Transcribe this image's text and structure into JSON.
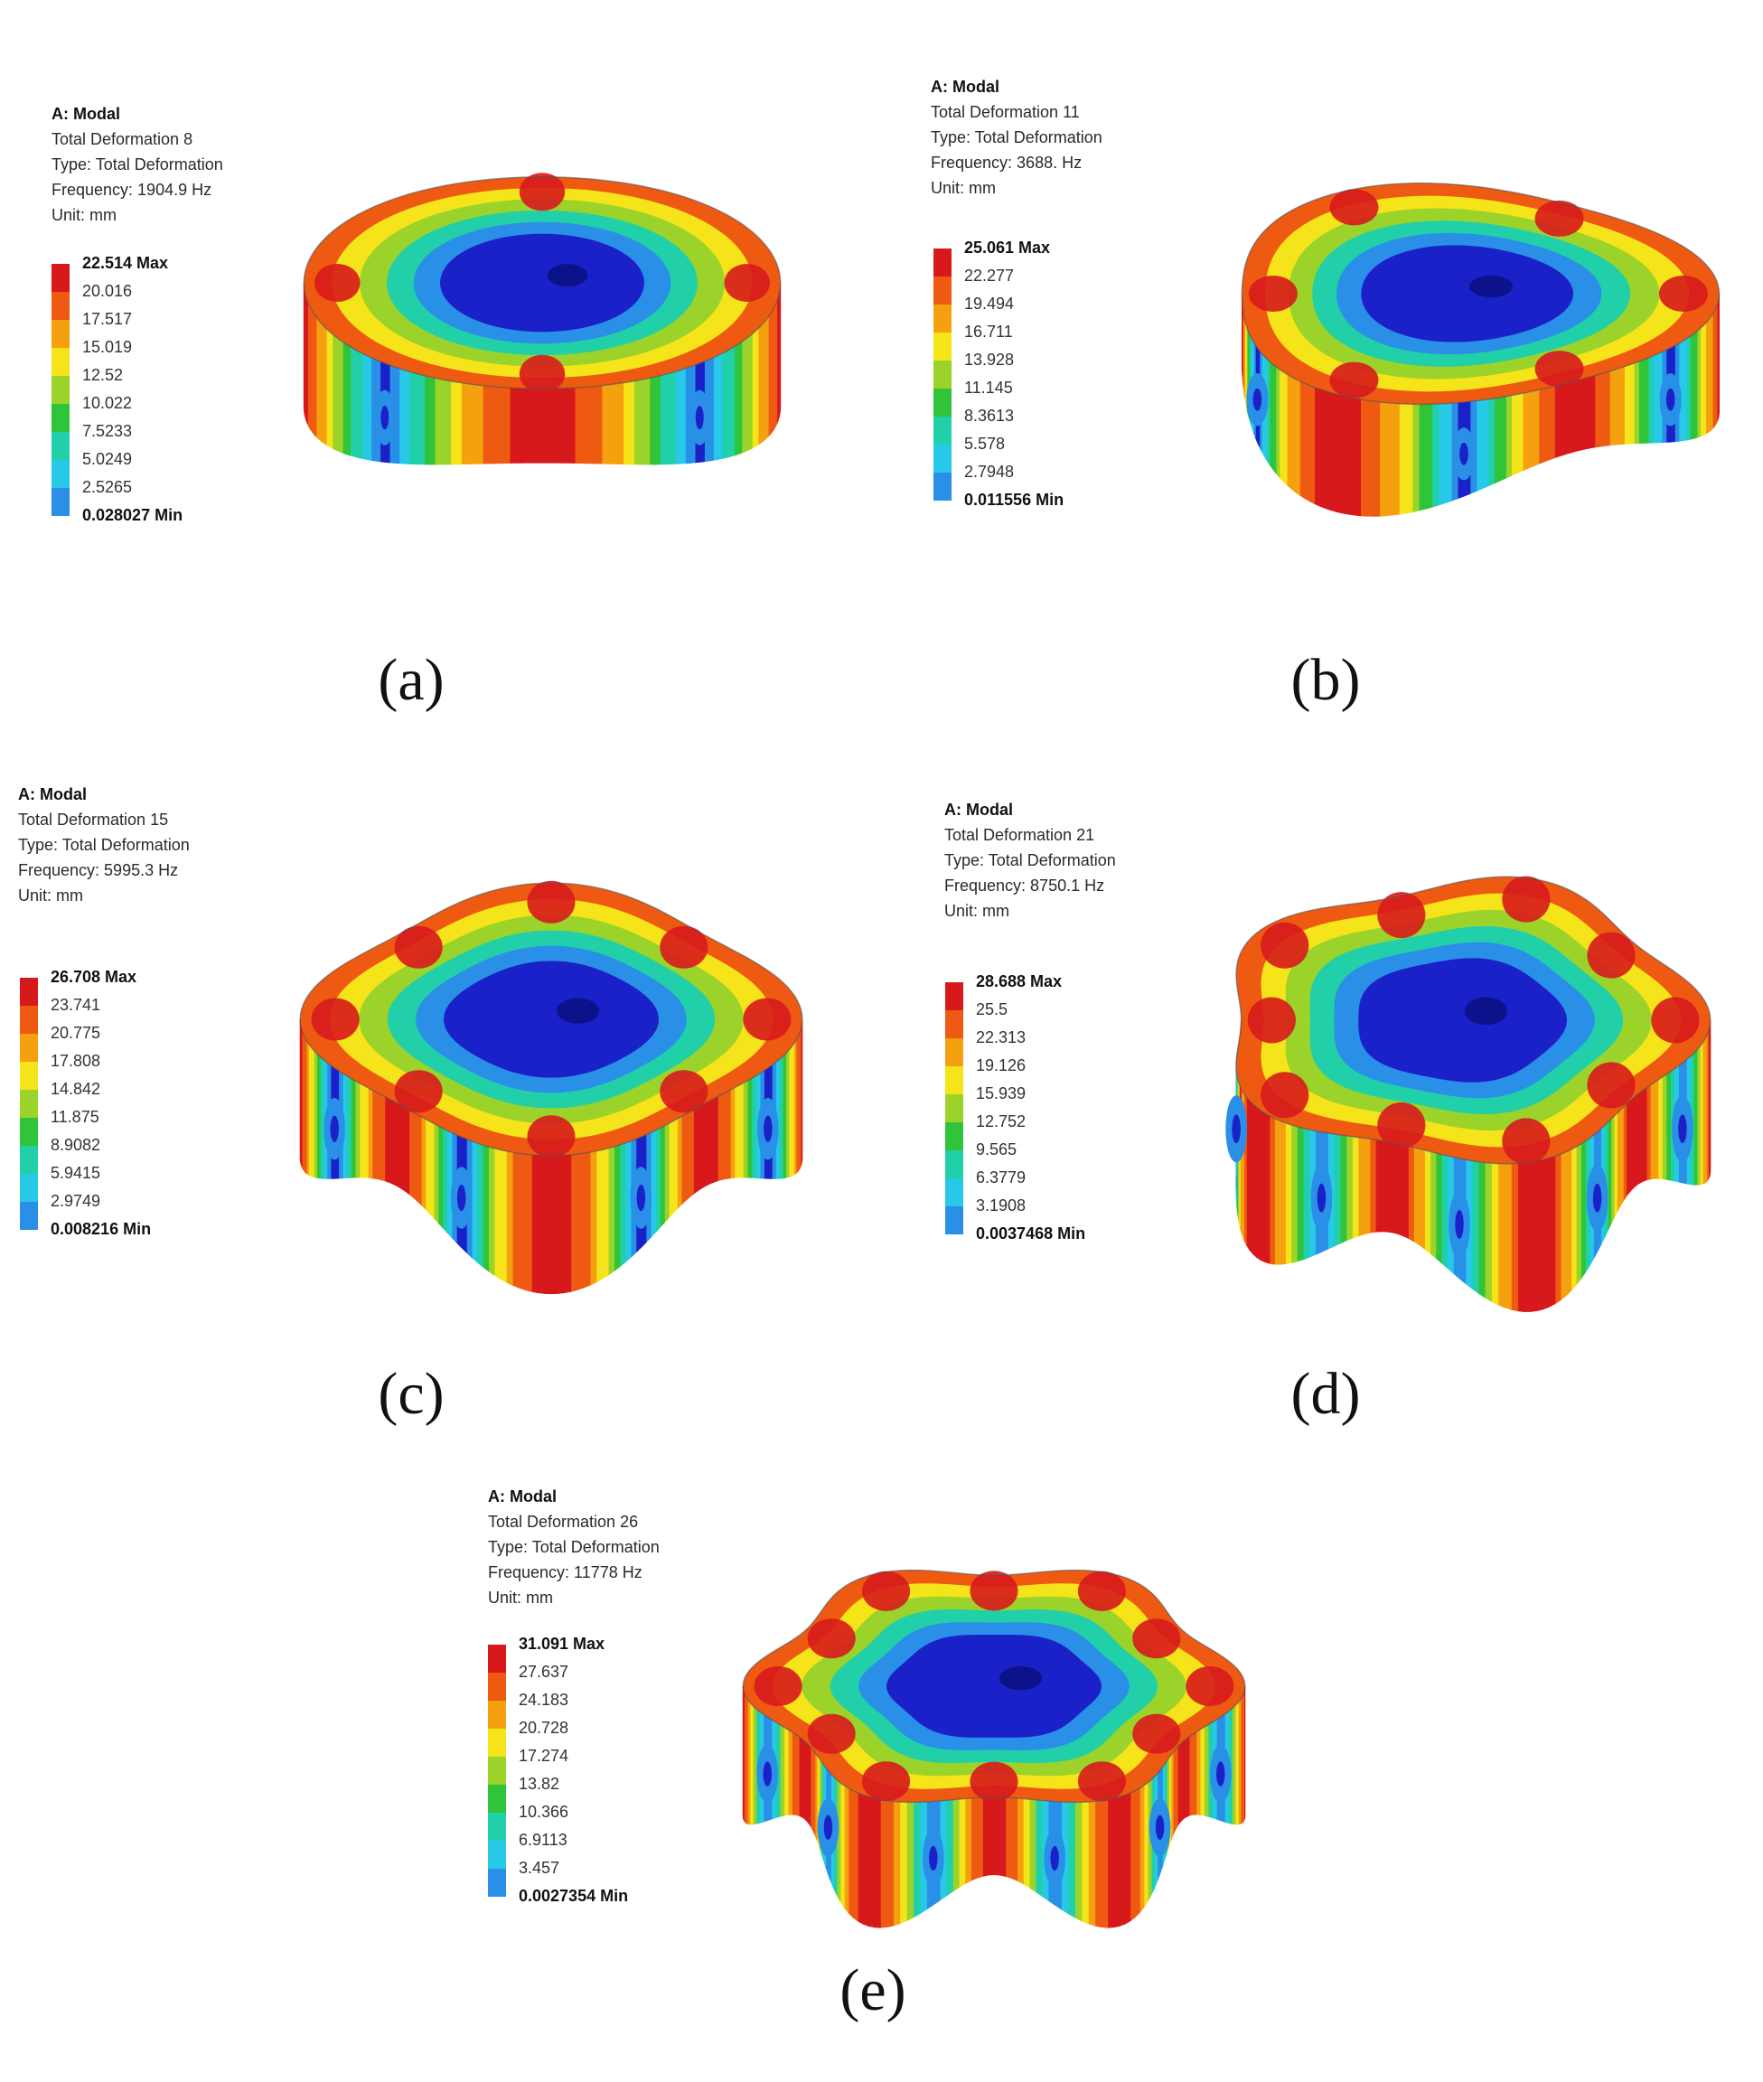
{
  "panels": [
    {
      "id": "a",
      "caption": "(a)",
      "analysis": "A: Modal",
      "result": "Total Deformation 8",
      "type": "Type: Total Deformation",
      "frequency": "Frequency: 1904.9 Hz",
      "unit": "Unit: mm",
      "legend": [
        "22.514 Max",
        "20.016",
        "17.517",
        "15.019",
        "12.52",
        "10.022",
        "7.5233",
        "5.0249",
        "2.5265",
        "0.028027 Min"
      ],
      "lobes": 2
    },
    {
      "id": "b",
      "caption": "(b)",
      "analysis": "A: Modal",
      "result": "Total Deformation 11",
      "type": "Type: Total Deformation",
      "frequency": "Frequency: 3688. Hz",
      "unit": "Unit: mm",
      "legend": [
        "25.061 Max",
        "22.277",
        "19.494",
        "16.711",
        "13.928",
        "11.145",
        "8.3613",
        "5.578",
        "2.7948",
        "0.011556 Min"
      ],
      "lobes": 3
    },
    {
      "id": "c",
      "caption": "(c)",
      "analysis": "A: Modal",
      "result": "Total Deformation 15",
      "type": "Type: Total Deformation",
      "frequency": "Frequency: 5995.3 Hz",
      "unit": "Unit: mm",
      "legend": [
        "26.708 Max",
        "23.741",
        "20.775",
        "17.808",
        "14.842",
        "11.875",
        "8.9082",
        "5.9415",
        "2.9749",
        "0.008216 Min"
      ],
      "lobes": 4
    },
    {
      "id": "d",
      "caption": "(d)",
      "analysis": "A: Modal",
      "result": "Total Deformation 21",
      "type": "Type: Total Deformation",
      "frequency": "Frequency: 8750.1 Hz",
      "unit": "Unit: mm",
      "legend": [
        "28.688 Max",
        "25.5",
        "22.313",
        "19.126",
        "15.939",
        "12.752",
        "9.565",
        "6.3779",
        "3.1908",
        "0.0037468 Min"
      ],
      "lobes": 5
    },
    {
      "id": "e",
      "caption": "(e)",
      "analysis": "A: Modal",
      "result": "Total Deformation 26",
      "type": "Type: Total Deformation",
      "frequency": "Frequency: 11778 Hz",
      "unit": "Unit: mm",
      "legend": [
        "31.091 Max",
        "27.637",
        "24.183",
        "20.728",
        "17.274",
        "13.82",
        "10.366",
        "6.9113",
        "3.457",
        "0.0027354 Min"
      ],
      "lobes": 6
    }
  ],
  "colormap": [
    "#d7191c",
    "#ee5a12",
    "#f5a00e",
    "#f5e41a",
    "#9bd32a",
    "#2fc43a",
    "#21d0a8",
    "#27c8e8",
    "#2a8fe6",
    "#1a21c8"
  ]
}
